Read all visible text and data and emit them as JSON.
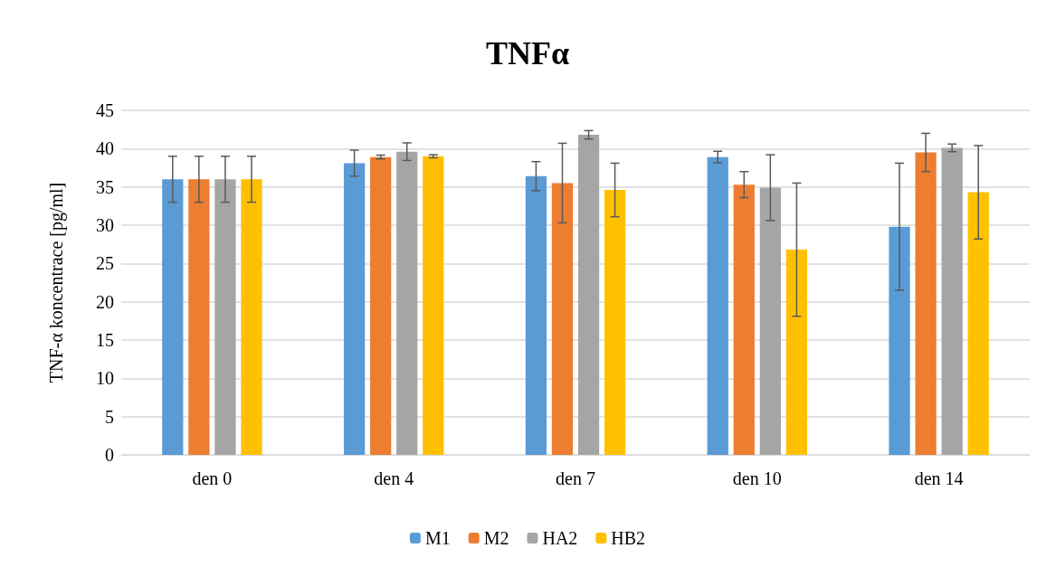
{
  "chart_data": {
    "type": "bar",
    "title": "TNFα",
    "ylabel": "TNF-α koncentrace [pg/ml]",
    "categories": [
      "den 0",
      "den 4",
      "den 7",
      "den 10",
      "den 14"
    ],
    "series": [
      {
        "name": "M1",
        "color": "#5b9bd5",
        "values": [
          36,
          38.1,
          36.4,
          38.9,
          29.8
        ],
        "errors": [
          3,
          1.7,
          1.9,
          0.75,
          8.3
        ]
      },
      {
        "name": "M2",
        "color": "#ed7d31",
        "values": [
          36,
          38.9,
          35.5,
          35.3,
          39.5
        ],
        "errors": [
          3,
          0.25,
          5.2,
          1.7,
          2.5
        ]
      },
      {
        "name": "HA2",
        "color": "#a5a5a5",
        "values": [
          36,
          39.6,
          41.8,
          34.9,
          40.1
        ],
        "errors": [
          3,
          1.15,
          0.55,
          4.3,
          0.5
        ]
      },
      {
        "name": "HB2",
        "color": "#ffc000",
        "values": [
          36,
          39,
          34.6,
          26.8,
          34.3
        ],
        "errors": [
          3,
          0.2,
          3.5,
          8.7,
          6.1
        ]
      }
    ],
    "ylim": [
      0,
      45
    ],
    "yticks": [
      0,
      5,
      10,
      15,
      20,
      25,
      30,
      35,
      40,
      45
    ],
    "grid": "y",
    "legend": "bottom"
  }
}
